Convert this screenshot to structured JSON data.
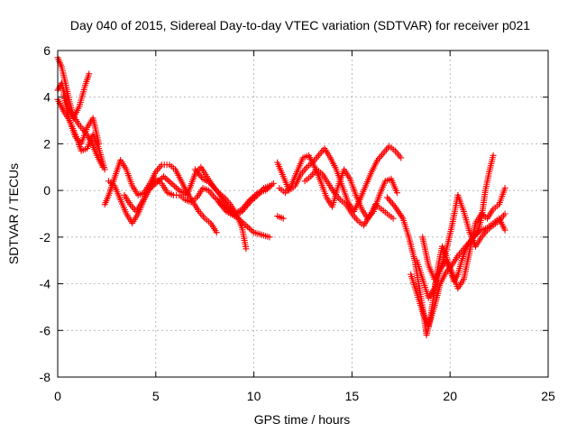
{
  "chart_data": {
    "type": "scatter",
    "title": "Day 040 of 2015, Sidereal Day-to-day VTEC variation (SDTVAR) for receiver p021",
    "xlabel": "GPS time / hours",
    "ylabel": "SDTVAR / TECUs",
    "xlim": [
      0,
      25
    ],
    "ylim": [
      -8,
      6
    ],
    "xticks": [
      0,
      5,
      10,
      15,
      20,
      25
    ],
    "yticks": [
      -8,
      -6,
      -4,
      -2,
      0,
      2,
      4,
      6
    ],
    "xtick_labels": [
      "0",
      "5",
      "10",
      "15",
      "20",
      "25"
    ],
    "ytick_labels": [
      "-8",
      "-6",
      "-4",
      "-2",
      "0",
      "2",
      "4",
      "6"
    ],
    "grid": true,
    "marker": "+",
    "color": "#ff0000",
    "series": [
      {
        "name": "s1",
        "x": [
          0.0,
          0.2,
          0.4,
          0.6,
          0.8,
          1.1,
          1.4,
          1.7,
          2.0,
          2.3
        ],
        "y": [
          5.7,
          5.3,
          4.6,
          3.8,
          3.2,
          2.8,
          2.5,
          2.1,
          1.5,
          1.0
        ]
      },
      {
        "name": "s2",
        "x": [
          0.0,
          0.2,
          0.5,
          0.8,
          1.1,
          1.4,
          1.6
        ],
        "y": [
          4.3,
          4.6,
          3.6,
          3.1,
          3.6,
          4.5,
          5.0
        ]
      },
      {
        "name": "s3",
        "x": [
          0.0,
          0.3,
          0.6,
          0.9,
          1.2,
          1.5,
          1.8,
          2.1,
          2.4
        ],
        "y": [
          3.9,
          3.4,
          3.0,
          2.4,
          1.7,
          1.8,
          2.4,
          1.8,
          0.9
        ]
      },
      {
        "name": "s4",
        "x": [
          0.3,
          0.6,
          0.9,
          1.2,
          1.5,
          1.8,
          2.1
        ],
        "y": [
          4.1,
          3.0,
          2.3,
          2.0,
          2.7,
          3.1,
          2.0
        ]
      },
      {
        "name": "s5",
        "x": [
          2.4,
          2.6,
          2.8,
          3.0,
          3.2,
          3.5,
          3.8,
          4.1,
          4.4,
          4.7,
          5.0,
          5.3,
          5.7,
          6.0,
          6.3,
          6.6,
          6.9,
          7.2,
          7.5,
          7.8,
          8.1
        ],
        "y": [
          -0.6,
          -0.2,
          0.3,
          0.8,
          1.3,
          0.9,
          0.2,
          -0.2,
          -0.1,
          0.3,
          0.8,
          1.1,
          1.1,
          0.9,
          0.4,
          -0.1,
          -0.5,
          -0.9,
          -1.2,
          -1.4,
          -1.8
        ]
      },
      {
        "name": "s6",
        "x": [
          2.6,
          2.9,
          3.2,
          3.5,
          3.8,
          4.1,
          4.4,
          4.7,
          5.0,
          5.3,
          5.6,
          5.9,
          6.2,
          6.5,
          6.8,
          7.1,
          7.4,
          7.7,
          8.0,
          8.4,
          8.8,
          9.2,
          9.6,
          10.0,
          10.4,
          10.8
        ],
        "y": [
          0.4,
          0.2,
          -0.4,
          -1.0,
          -1.4,
          -1.0,
          -0.4,
          0.1,
          0.5,
          0.3,
          -0.1,
          -0.2,
          -0.2,
          -0.4,
          -0.5,
          -0.3,
          0.1,
          0.0,
          -0.3,
          -0.6,
          -0.9,
          -1.2,
          -1.5,
          -1.8,
          -1.9,
          -2.0
        ]
      },
      {
        "name": "s7",
        "x": [
          3.4,
          3.7,
          4.0,
          4.3,
          4.6,
          5.0,
          5.4,
          5.8,
          6.2,
          6.6,
          7.0,
          7.3,
          7.6,
          7.9,
          8.2,
          8.5,
          8.8,
          9.1,
          9.4,
          9.6
        ],
        "y": [
          -0.2,
          -0.6,
          -0.9,
          -0.5,
          0.0,
          0.3,
          0.6,
          0.3,
          0.0,
          -0.2,
          0.7,
          1.0,
          0.6,
          0.2,
          -0.1,
          -0.3,
          -0.6,
          -1.0,
          -1.6,
          -2.5
        ]
      },
      {
        "name": "s8",
        "x": [
          7.0,
          7.4,
          7.8,
          8.2,
          8.6,
          9.0,
          9.4,
          9.8,
          10.2,
          10.6,
          11.0
        ],
        "y": [
          0.9,
          0.5,
          0.3,
          -0.1,
          -0.6,
          -1.0,
          -0.8,
          -0.4,
          -0.1,
          0.0,
          0.3
        ]
      },
      {
        "name": "s9",
        "x": [
          8.2,
          8.6,
          9.0,
          9.4,
          9.8,
          10.2,
          10.5,
          10.8
        ],
        "y": [
          -0.5,
          -0.9,
          -1.1,
          -0.9,
          -0.5,
          -0.2,
          0.1,
          0.2
        ]
      },
      {
        "name": "s10",
        "x": [
          11.2,
          11.5,
          11.8,
          12.1,
          12.4,
          12.7,
          13.0,
          13.3,
          13.6,
          13.9,
          14.2,
          14.5,
          14.8,
          15.1,
          15.4,
          15.7,
          16.0,
          16.3,
          16.6,
          16.9,
          17.2,
          17.5
        ],
        "y": [
          1.2,
          0.6,
          0.0,
          0.2,
          0.7,
          1.0,
          1.2,
          1.5,
          1.8,
          1.4,
          0.9,
          0.2,
          -0.5,
          -0.9,
          -0.4,
          0.2,
          0.8,
          1.3,
          1.6,
          1.9,
          1.7,
          1.4
        ]
      },
      {
        "name": "s11",
        "x": [
          11.3,
          11.6,
          11.9,
          12.2,
          12.5,
          12.8,
          13.1,
          13.4,
          13.7,
          14.0,
          14.3,
          14.6,
          14.9,
          15.2,
          15.5,
          15.8,
          16.1,
          16.4,
          16.7,
          17.0,
          17.3
        ],
        "y": [
          0.1,
          -0.1,
          0.2,
          0.8,
          1.4,
          1.5,
          1.0,
          0.4,
          -0.3,
          -0.7,
          0.2,
          0.9,
          0.5,
          -0.2,
          -0.8,
          -1.2,
          -0.9,
          -0.2,
          0.4,
          0.5,
          -0.1
        ]
      },
      {
        "name": "s12",
        "x": [
          11.2,
          11.5
        ],
        "y": [
          -1.1,
          -1.2
        ]
      },
      {
        "name": "s13",
        "x": [
          12.6,
          12.9,
          13.2,
          13.5,
          13.8,
          14.1,
          14.4,
          14.7,
          15.0,
          15.3,
          15.6,
          15.9,
          16.2,
          16.5,
          16.8,
          17.1
        ],
        "y": [
          0.4,
          0.6,
          0.9,
          0.7,
          0.3,
          -0.1,
          -0.4,
          -0.6,
          -1.0,
          -1.3,
          -1.5,
          -1.1,
          -0.6,
          -0.8,
          -1.0,
          -1.2
        ]
      },
      {
        "name": "s14",
        "x": [
          16.8,
          17.2,
          17.6,
          17.9,
          18.2,
          18.4,
          18.6,
          18.8,
          19.0,
          19.2,
          19.4,
          19.6,
          19.8,
          20.0,
          20.2,
          20.4,
          20.6,
          20.8,
          21.0,
          21.2,
          21.4,
          21.6,
          21.8,
          22.0,
          22.2
        ],
        "y": [
          -0.3,
          -0.7,
          -1.2,
          -2.0,
          -3.0,
          -4.0,
          -5.0,
          -6.2,
          -5.5,
          -4.3,
          -3.2,
          -2.4,
          -2.8,
          -3.4,
          -3.9,
          -3.6,
          -3.0,
          -2.5,
          -2.2,
          -2.0,
          -1.8,
          -1.2,
          0.0,
          0.8,
          1.5
        ]
      },
      {
        "name": "s15",
        "x": [
          18.0,
          18.3,
          18.6,
          18.9,
          19.2,
          19.5,
          19.8,
          20.1,
          20.4,
          20.7,
          21.0,
          21.3,
          21.6,
          21.9,
          22.2,
          22.5,
          22.8
        ],
        "y": [
          -3.6,
          -4.4,
          -5.2,
          -5.8,
          -5.0,
          -4.0,
          -3.5,
          -3.2,
          -2.8,
          -2.5,
          -2.2,
          -1.9,
          -1.7,
          -1.6,
          -1.4,
          -1.2,
          -1.7
        ]
      },
      {
        "name": "s16",
        "x": [
          18.3,
          18.6,
          18.9,
          19.2,
          19.5,
          19.8,
          20.1,
          20.4,
          20.7,
          21.0,
          21.3,
          21.6,
          21.9,
          22.2,
          22.5,
          22.8
        ],
        "y": [
          -3.0,
          -3.8,
          -4.6,
          -4.2,
          -3.4,
          -2.6,
          -1.5,
          -0.2,
          -0.9,
          -1.8,
          -2.4,
          -2.0,
          -1.7,
          -1.5,
          -1.3,
          -1.0
        ]
      },
      {
        "name": "s17",
        "x": [
          18.6,
          18.9,
          19.2,
          19.5,
          19.8,
          20.1,
          20.4,
          20.7,
          21.0,
          21.3,
          21.6,
          21.9,
          22.2,
          22.5,
          22.8
        ],
        "y": [
          -2.0,
          -3.2,
          -3.8,
          -3.4,
          -3.0,
          -3.5,
          -4.2,
          -3.8,
          -2.6,
          -1.4,
          -1.0,
          -1.2,
          -0.8,
          -0.6,
          0.1
        ]
      }
    ]
  }
}
